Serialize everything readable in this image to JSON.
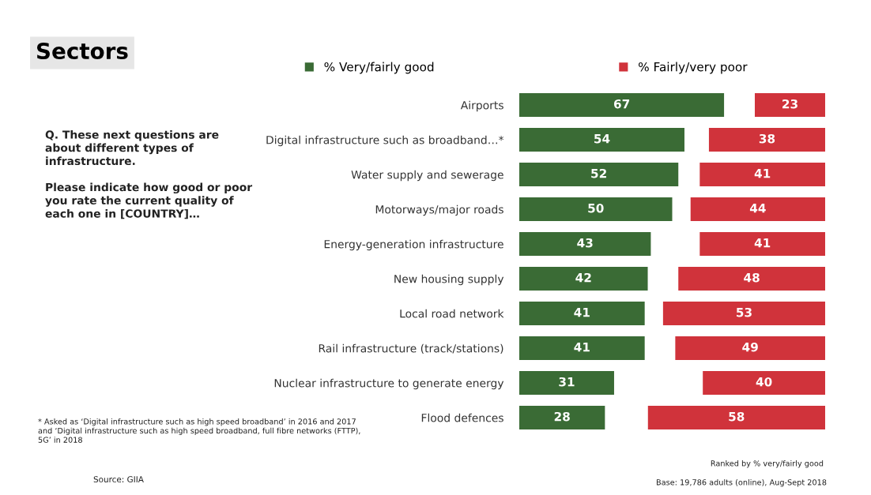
{
  "chart_data": [
    {
      "type": "other",
      "title": "Sectors",
      "annotations": [
        "Q. These next questions are about different types of infrastructure.\n\nPlease indicate how good or poor you rate the current quality of each one in [COUNTRY]…",
        "* Asked as ‘Digital infrastructure such as high speed broadband’ in 2016 and 2017 and ‘Digital infrastructure such as high speed broadband, full fibre networks (FTTP), 5G’ in 2018",
        "Source: GIIA",
        "Ranked by % very/fairly good",
        "Base: 19,786 adults (online), Aug-Sept 2018"
      ]
    },
    {
      "type": "bar",
      "orientation": "horizontal",
      "categories": [
        "Airports",
        "Digital infrastructure such as broadband…*",
        "Water supply and sewerage",
        "Motorways/major roads",
        "Energy-generation infrastructure",
        "New housing supply",
        "Local road network",
        "Rail infrastructure (track/stations)",
        "Nuclear infrastructure to generate energy",
        "Flood defences"
      ],
      "series": [
        {
          "name": "% Very/fairly good",
          "color": "#3a6b35",
          "values": [
            67,
            54,
            52,
            50,
            43,
            42,
            41,
            41,
            31,
            28
          ]
        }
      ],
      "tick_labels": "y",
      "data_labels": true,
      "legend": "top"
    },
    {
      "type": "bar",
      "orientation": "horizontal",
      "categories": [
        null,
        null,
        null,
        null,
        null,
        null,
        null,
        null,
        null,
        null
      ],
      "series": [
        {
          "name": "% Fairly/very poor",
          "color": "#d0333b",
          "values": [
            23,
            38,
            41,
            44,
            41,
            48,
            53,
            49,
            40,
            58
          ]
        }
      ],
      "tick_labels": false,
      "data_labels": true,
      "legend": "top"
    }
  ]
}
